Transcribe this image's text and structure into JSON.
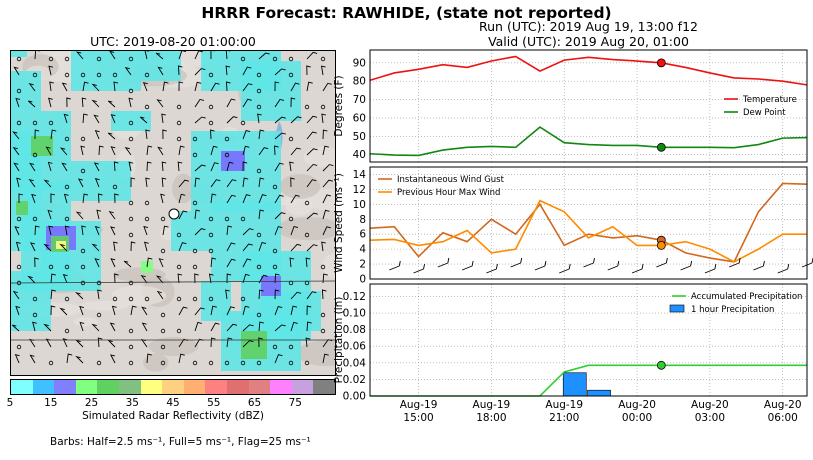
{
  "title": "HRRR Forecast: RAWHIDE, (state not reported)",
  "map": {
    "title": "UTC: 2019-08-20 01:00:00",
    "colorbar_label": "Simulated Radar Reflectivity (dBZ)",
    "colorbar_ticks": [
      "5",
      "15",
      "25",
      "35",
      "45",
      "55",
      "65",
      "75"
    ],
    "colorbar_colors": [
      "#7fffff",
      "#40c0ff",
      "#8080ff",
      "#80ff80",
      "#60d060",
      "#80c080",
      "#ffff80",
      "#ffd080",
      "#ffb070",
      "#ff8080",
      "#e07070",
      "#e08080",
      "#ff80ff",
      "#c8a0e0",
      "#808080"
    ],
    "barbs_note": "Barbs: Half=2.5 ms⁻¹, Full=5 ms⁻¹, Flag=25 ms⁻¹"
  },
  "run_label": "Run (UTC): 2019 Aug 19, 13:00 f12",
  "valid_label": "Valid (UTC): 2019 Aug 20, 01:00",
  "x_tick_labels": [
    [
      "Aug-19",
      "15:00"
    ],
    [
      "Aug-19",
      "18:00"
    ],
    [
      "Aug-19",
      "21:00"
    ],
    [
      "Aug-20",
      "00:00"
    ],
    [
      "Aug-20",
      "03:00"
    ],
    [
      "Aug-20",
      "06:00"
    ]
  ],
  "chart_data": [
    {
      "type": "line",
      "ylabel": "Degrees (F)",
      "ylim": [
        36,
        97
      ],
      "yticks": [
        40,
        50,
        60,
        70,
        80,
        90
      ],
      "x": [
        "2019-08-19 13:00",
        "2019-08-19 14:00",
        "2019-08-19 15:00",
        "2019-08-19 16:00",
        "2019-08-19 17:00",
        "2019-08-19 18:00",
        "2019-08-19 19:00",
        "2019-08-19 20:00",
        "2019-08-19 21:00",
        "2019-08-19 22:00",
        "2019-08-19 23:00",
        "2019-08-20 00:00",
        "2019-08-20 01:00",
        "2019-08-20 02:00",
        "2019-08-20 03:00",
        "2019-08-20 04:00",
        "2019-08-20 05:00",
        "2019-08-20 06:00",
        "2019-08-20 07:00"
      ],
      "series": [
        {
          "name": "Temperature",
          "color": "#ee1111",
          "values": [
            80.5,
            84.5,
            86.5,
            89.0,
            87.5,
            91.0,
            93.5,
            85.5,
            91.5,
            93.0,
            91.8,
            91.0,
            90.0,
            87.5,
            84.5,
            81.8,
            81.2,
            80.0,
            78.0
          ]
        },
        {
          "name": "Dew Point",
          "color": "#118811",
          "values": [
            40.5,
            39.8,
            39.6,
            42.5,
            44.0,
            44.5,
            44.0,
            55.0,
            46.5,
            45.5,
            45.0,
            45.0,
            44.0,
            44.0,
            44.0,
            43.8,
            45.5,
            49.0,
            49.3
          ]
        }
      ],
      "legend": "center-right",
      "grid": true
    },
    {
      "type": "line",
      "ylabel": "Wind Speed (ms⁻¹)",
      "ylim": [
        0,
        15
      ],
      "yticks": [
        0,
        2,
        4,
        6,
        8,
        10,
        12,
        14
      ],
      "series": [
        {
          "name": "Instantaneous Wind Gust",
          "color": "#d2691e",
          "values": [
            6.8,
            7.0,
            3.0,
            6.2,
            5.0,
            8.0,
            6.0,
            10.0,
            4.5,
            6.0,
            5.5,
            5.8,
            5.2,
            3.5,
            2.8,
            2.3,
            9.0,
            12.8,
            12.7
          ]
        },
        {
          "name": "Previous Hour Max Wind",
          "color": "#ff8c00",
          "values": [
            5.2,
            5.3,
            4.5,
            5.0,
            6.5,
            3.5,
            4.0,
            10.5,
            9.0,
            5.5,
            7.0,
            4.5,
            4.5,
            5.0,
            4.0,
            2.3,
            4.0,
            6.0,
            6.0
          ]
        }
      ],
      "legend": "top-left",
      "grid": true
    },
    {
      "type": "bar",
      "ylabel": "Precipitation (in)",
      "ylim": [
        0,
        0.135
      ],
      "yticks": [
        0.0,
        0.02,
        0.04,
        0.06,
        0.08,
        0.1,
        0.12
      ],
      "series": [
        {
          "name": "Accumulated Precipitation",
          "color": "#32cd32",
          "values": [
            0,
            0,
            0,
            0,
            0,
            0,
            0,
            0,
            0.029,
            0.037,
            0.037,
            0.037,
            0.037,
            0.037,
            0.037,
            0.037,
            0.037,
            0.037,
            0.037
          ]
        },
        {
          "name": "1 hour Precipitation",
          "color": "#1e90ff",
          "values": [
            0,
            0,
            0,
            0,
            0,
            0,
            0,
            0,
            0.028,
            0.007,
            0,
            0,
            0,
            0,
            0,
            0,
            0,
            0,
            0
          ]
        }
      ],
      "legend": "top-right",
      "grid": true
    }
  ]
}
